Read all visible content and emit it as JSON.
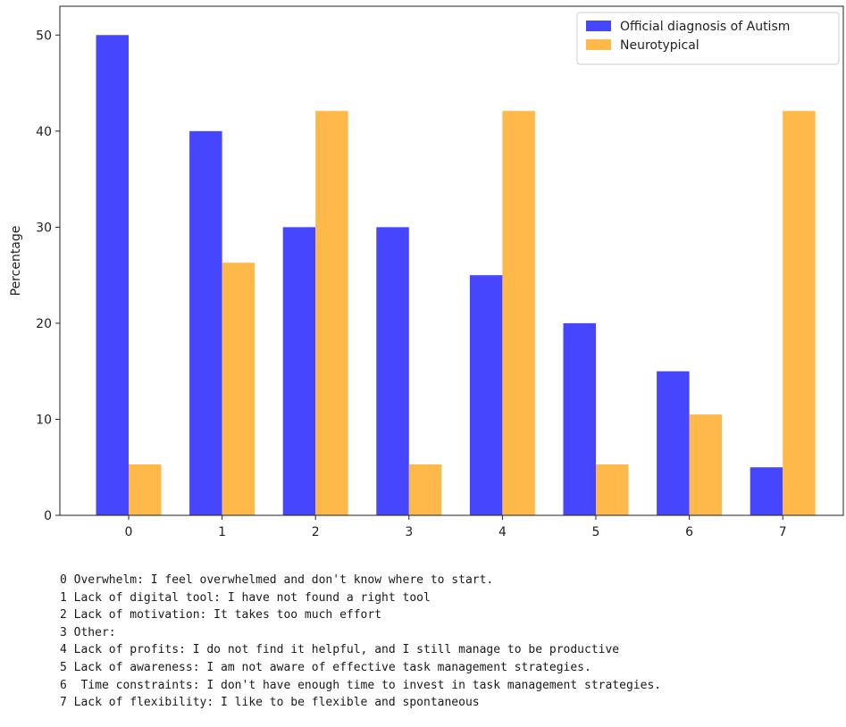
{
  "chart_data": {
    "type": "bar",
    "title": "",
    "xlabel": "",
    "ylabel": "Percentage",
    "categories": [
      "0",
      "1",
      "2",
      "3",
      "4",
      "5",
      "6",
      "7"
    ],
    "ylim": [
      0,
      53
    ],
    "yticks": [
      0,
      10,
      20,
      30,
      40,
      50
    ],
    "grid": false,
    "legend_position": "top-right",
    "series": [
      {
        "name": "Official diagnosis of Autism",
        "color": "#4646FF",
        "values": [
          50,
          40,
          30,
          30,
          25,
          20,
          15,
          5
        ]
      },
      {
        "name": "Neurotypical",
        "color": "#FFB84A",
        "values": [
          5.3,
          26.3,
          42.1,
          5.3,
          42.1,
          5.3,
          10.5,
          42.1
        ]
      }
    ]
  },
  "notes": [
    "0 Overwhelm: I feel overwhelmed and don't know where to start.",
    "1 Lack of digital tool: I have not found a right tool",
    "2 Lack of motivation: It takes too much effort",
    "3 Other:",
    "4 Lack of profits: I do not find it helpful, and I still manage to be productive",
    "5 Lack of awareness: I am not aware of effective task management strategies.",
    "6  Time constraints: I don't have enough time to invest in task management strategies.",
    "7 Lack of flexibility: I like to be flexible and spontaneous"
  ]
}
